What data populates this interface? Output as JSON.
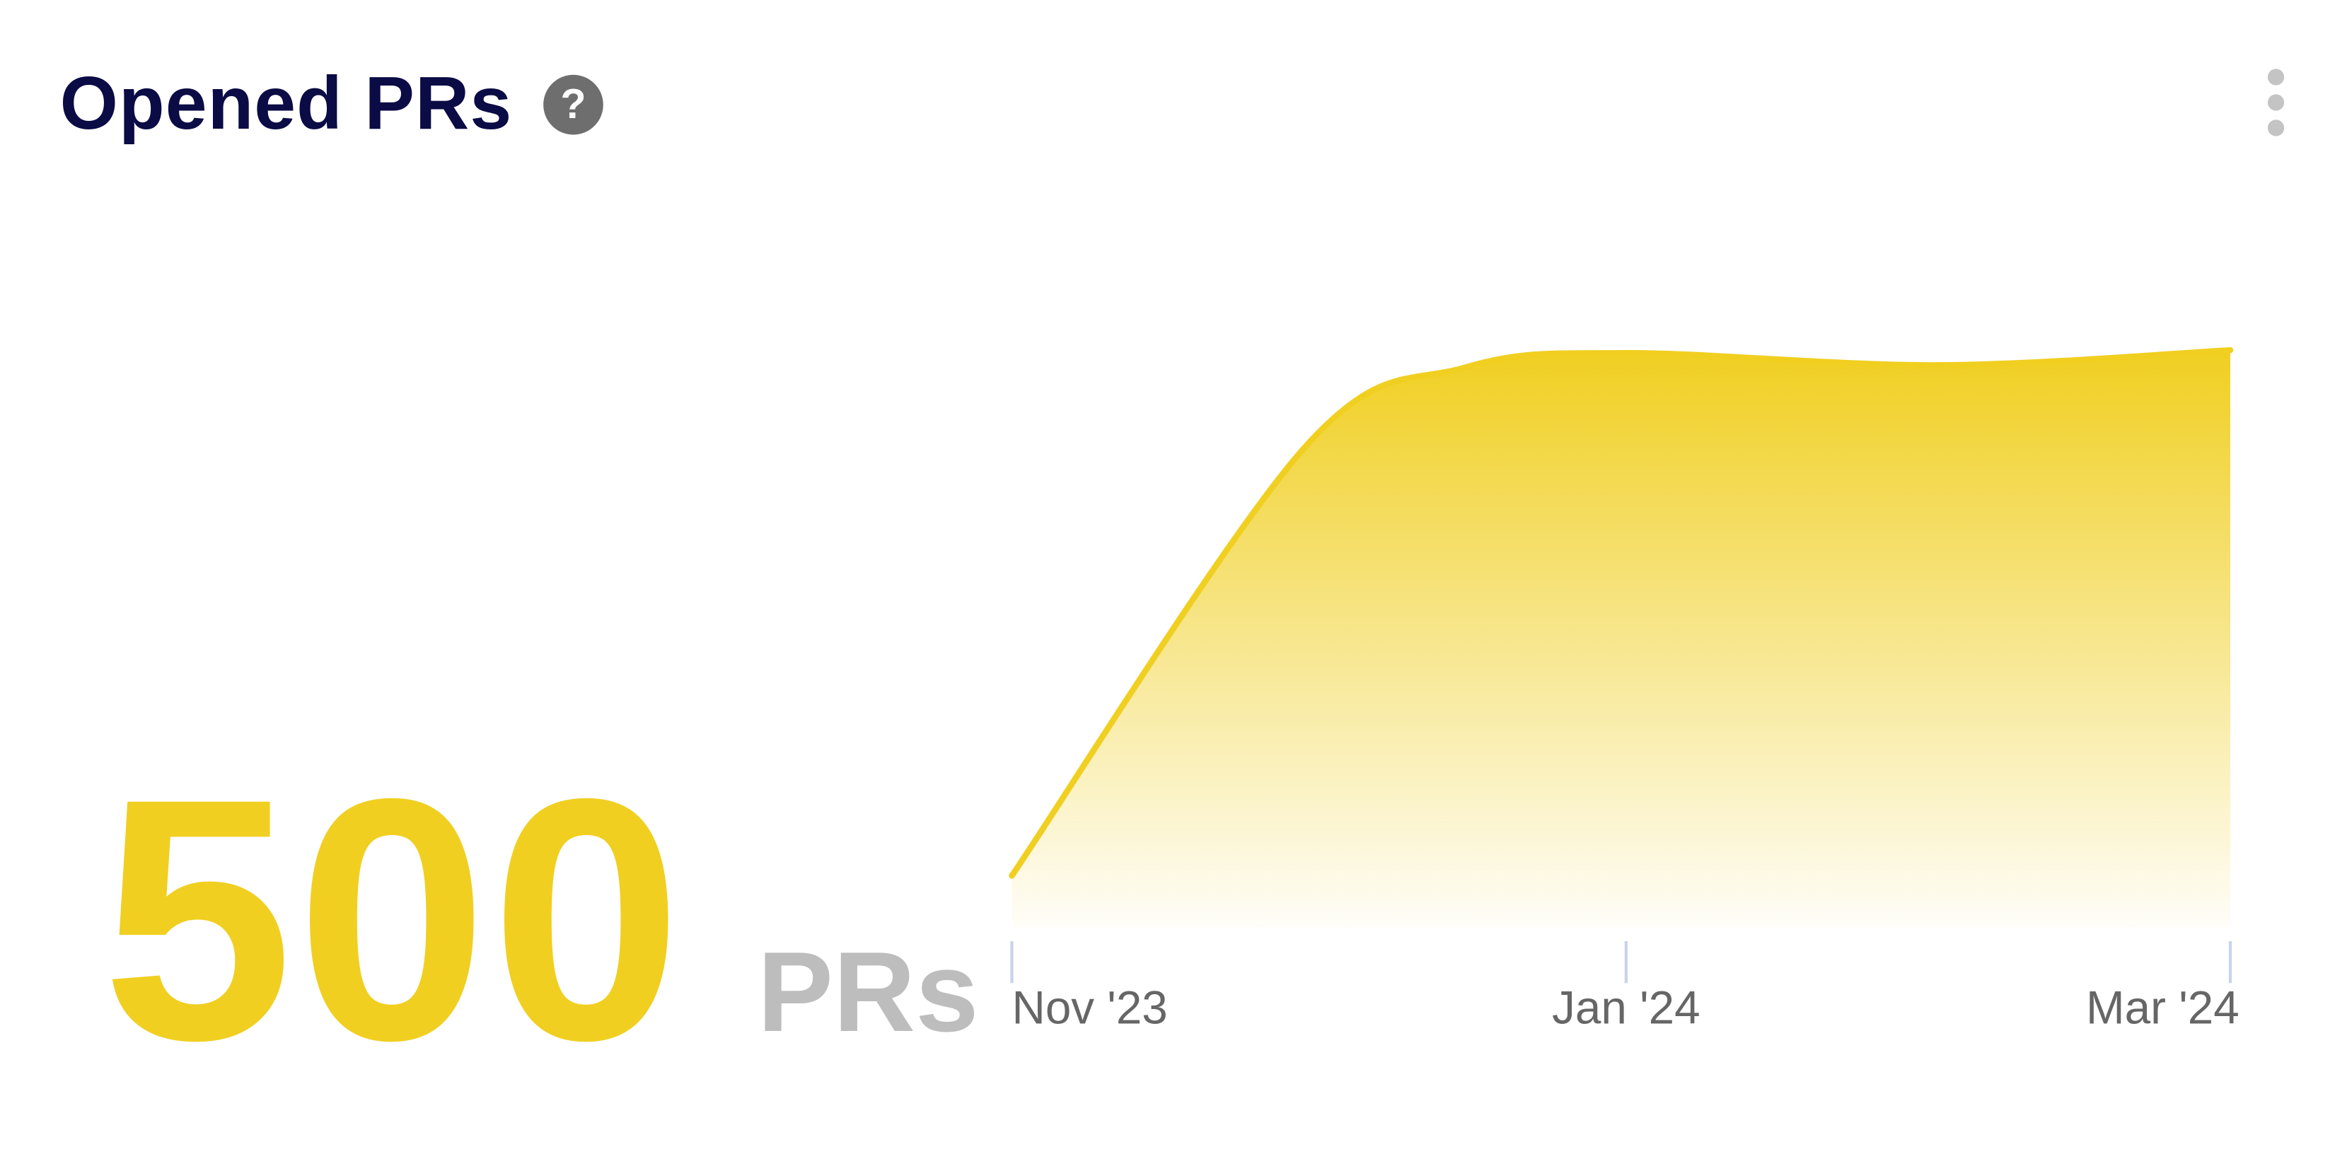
{
  "header": {
    "title": "Opened PRs",
    "help_icon": "question-circle-icon",
    "menu_icon": "kebab-menu-icon"
  },
  "summary": {
    "value": "500",
    "unit": "PRs"
  },
  "colors": {
    "accent": "#f0cf21",
    "title": "#0b0b45",
    "tick": "#c9d3ea",
    "label": "#666666"
  },
  "chart_data": {
    "type": "area",
    "x": [
      "2023-11-01",
      "2023-11-30",
      "2023-12-16",
      "2024-01-01",
      "2024-02-01",
      "2024-03-01"
    ],
    "values": [
      9,
      83,
      97,
      99.5,
      97.4,
      100
    ],
    "value_note_unit": "relative",
    "ylim": [
      0,
      100
    ],
    "x_ticks": [
      {
        "date": "2023-11-01",
        "label": "Nov '23"
      },
      {
        "date": "2024-01-01",
        "label": "Jan '24"
      },
      {
        "date": "2024-03-01",
        "label": "Mar '24"
      }
    ],
    "grid": false,
    "y_axis_visible": false
  }
}
